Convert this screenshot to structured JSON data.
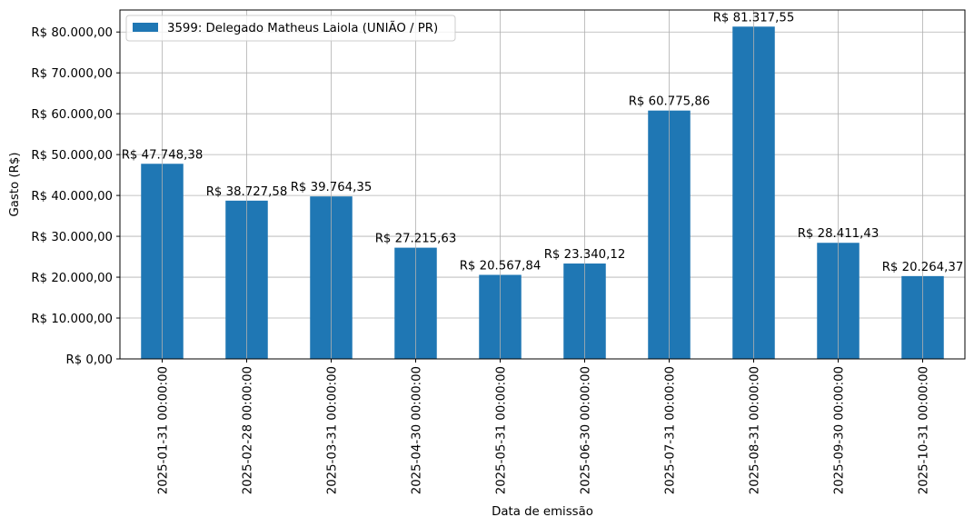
{
  "chart_data": {
    "type": "bar",
    "categories": [
      "2025-01-31 00:00:00",
      "2025-02-28 00:00:00",
      "2025-03-31 00:00:00",
      "2025-04-30 00:00:00",
      "2025-05-31 00:00:00",
      "2025-06-30 00:00:00",
      "2025-07-31 00:00:00",
      "2025-08-31 00:00:00",
      "2025-09-30 00:00:00",
      "2025-10-31 00:00:00"
    ],
    "series": [
      {
        "name": "3599: Delegado Matheus Laiola (UNIÃO / PR)",
        "color": "#1f77b4",
        "values": [
          47748.38,
          38727.58,
          39764.35,
          27215.63,
          20567.84,
          23340.12,
          60775.86,
          81317.55,
          28411.43,
          20264.37
        ],
        "labels": [
          "R$ 47.748,38",
          "R$ 38.727,58",
          "R$ 39.764,35",
          "R$ 27.215,63",
          "R$ 20.567,84",
          "R$ 23.340,12",
          "R$ 60.775,86",
          "R$ 81.317,55",
          "R$ 28.411,43",
          "R$ 20.264,37"
        ]
      }
    ],
    "xlabel": "Data de emissão",
    "ylabel": "Gasto (R$)",
    "ylim": [
      0,
      85385
    ],
    "yticks": [
      0,
      10000,
      20000,
      30000,
      40000,
      50000,
      60000,
      70000,
      80000
    ],
    "ytick_labels": [
      "R$ 0,00",
      "R$ 10.000,00",
      "R$ 20.000,00",
      "R$ 30.000,00",
      "R$ 40.000,00",
      "R$ 50.000,00",
      "R$ 60.000,00",
      "R$ 70.000,00",
      "R$ 80.000,00"
    ],
    "grid": true,
    "legend_position": "top-left"
  }
}
